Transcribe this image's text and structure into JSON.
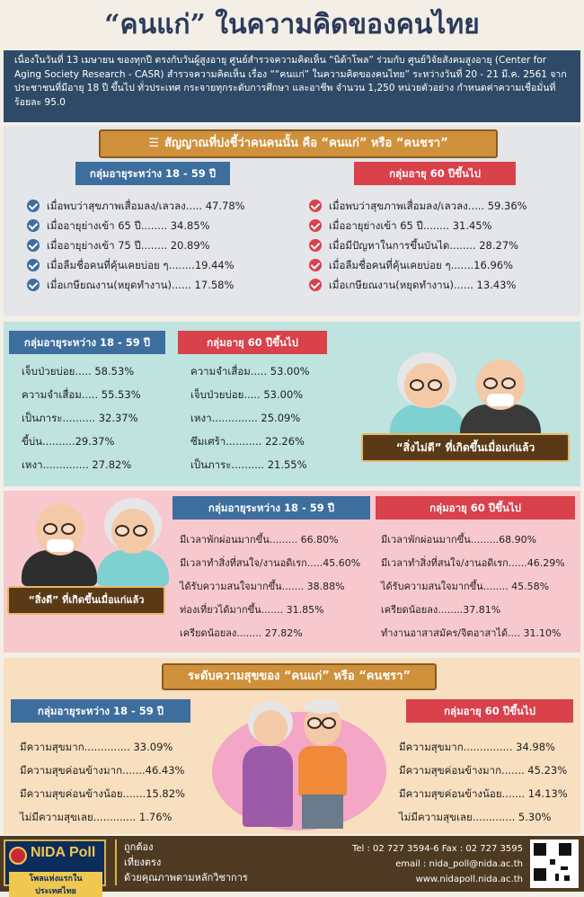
{
  "title": "“คนแก่” ในความคิดของคนไทย",
  "intro": "เนื่องในวันที่ 13 เมษายน ของทุกปี ตรงกับวันผู้สูงอายุ ศูนย์สำรวจความคิดเห็น “นิด้าโพล” ร่วมกับ ศูนย์วิจัยสังคมสูงอายุ (Center for Aging Society Research - CASR) สำรวจความคิดเห็น เรื่อง ““คนแก่” ในความคิดของคนไทย” ระหว่างวันที่ 20 - 21 มี.ค. 2561 จากประชาชนที่มีอายุ 18 ปี ขึ้นไป ทั่วประเทศ กระจายทุกระดับการศึกษา และอาชีพ จำนวน 1,250 หน่วยตัวอย่าง กำหนดค่าความเชื่อมั่นที่ร้อยละ 95.0",
  "sec1": {
    "banner": "สัญญาณที่บ่งชี้ว่าคนคนนั้น คือ “คนแก่” หรือ “คนชรา”",
    "left_header": "กลุ่มอายุระหว่าง 18 - 59 ปี",
    "right_header": "กลุ่มอายุ 60 ปีขึ้นไป",
    "left_items": [
      "เมื่อพบว่าสุขภาพเสื่อมลง/เลวลง..... 47.78%",
      "เมื่ออายุย่างเข้า 65 ปี........ 34.85%",
      "เมื่ออายุย่างเข้า 75 ปี........ 20.89%",
      "เมื่อลืมชื่อคนที่คุ้นเคยบ่อย ๆ........19.44%",
      "เมื่อเกษียณงาน(หยุดทำงาน)...... 17.58%"
    ],
    "right_items": [
      "เมื่อพบว่าสุขภาพเสื่อมลง/เลวลง..... 59.36%",
      "เมื่ออายุย่างเข้า 65 ปี........ 31.45%",
      "เมื่อมีปัญหาในการขึ้นบันได........ 28.27%",
      "เมื่อลืมชื่อคนที่คุ้นเคยบ่อย ๆ.......16.96%",
      "เมื่อเกษียณงาน(หยุดทำงาน)...... 13.43%"
    ]
  },
  "sec2": {
    "left_header": "กลุ่มอายุระหว่าง 18 - 59 ปี",
    "right_header": "กลุ่มอายุ 60 ปีขึ้นไป",
    "left_items": [
      "เจ็บป่วยบ่อย..... 58.53%",
      "ความจำเสื่อม..... 55.53%",
      "เป็นภาระ.......... 32.37%",
      "ขี้บ่น..........29.37%",
      "เหงา.............. 27.82%"
    ],
    "right_items": [
      "ความจำเสื่อม..... 53.00%",
      "เจ็บป่วยบ่อย..... 53.00%",
      "เหงา.............. 25.09%",
      "ซึมเศร้า........... 22.26%",
      "เป็นภาระ.......... 21.55%"
    ],
    "label": "“สิ่งไม่ดี” ที่เกิดขึ้นเมื่อแก่แล้ว"
  },
  "sec3": {
    "left_header": "กลุ่มอายุระหว่าง 18 - 59 ปี",
    "right_header": "กลุ่มอายุ 60 ปีขึ้นไป",
    "left_items": [
      "มีเวลาพักผ่อนมากขึ้น......... 66.80%",
      "มีเวลาทำสิ่งที่สนใจ/งานอดิเรก.....45.60%",
      "ได้รับความสนใจมากขึ้น....... 38.88%",
      "ท่องเที่ยวได้มากขึ้น....... 31.85%",
      "เครียดน้อยลง........ 27.82%"
    ],
    "right_items": [
      "มีเวลาพักผ่อนมากขึ้น.........68.90%",
      "มีเวลาทำสิ่งที่สนใจ/งานอดิเรก......46.29%",
      "ได้รับความสนใจมากขึ้น........ 45.58%",
      "เครียดน้อยลง........37.81%",
      "ทำงานอาสาสมัคร/จิตอาสาได้.... 31.10%"
    ],
    "label": "“สิ่งดี” ที่เกิดขึ้นเมื่อแก่แล้ว"
  },
  "sec4": {
    "banner": "ระดับความสุขของ “คนแก่” หรือ “คนชรา”",
    "left_header": "กลุ่มอายุระหว่าง 18 - 59 ปี",
    "right_header": "กลุ่มอายุ 60 ปีขึ้นไป",
    "left_items": [
      "มีความสุขมาก.............. 33.09%",
      "มีความสุขค่อนข้างมาก.......46.43%",
      "มีความสุขค่อนข้างน้อย.......15.82%",
      "ไม่มีความสุขเลย............. 1.76%"
    ],
    "right_items": [
      "มีความสุขมาก............... 34.98%",
      "มีความสุขค่อนข้างมาก....... 45.23%",
      "มีความสุขค่อนข้างน้อย....... 14.13%",
      "ไม่มีความสุขเลย............. 5.30%"
    ]
  },
  "footer": {
    "logo_name": "NIDA Poll",
    "logo_sub": "โพลแห่งแรกในประเทศไทย",
    "motto": [
      "ถูกต้อง",
      "เที่ยงตรง",
      "ด้วยคุณภาพตามหลักวิชาการ"
    ],
    "contact": [
      "Tel : 02 727 3594-6 Fax : 02 727 3595",
      "email : nida_poll@nida.ac.th",
      "www.nidapoll.nida.ac.th"
    ]
  },
  "colors": {
    "blue_header": "#3d6e9e",
    "red_header": "#d9414b",
    "banner": "#d0913c",
    "intro_bg": "#2f4a66"
  }
}
